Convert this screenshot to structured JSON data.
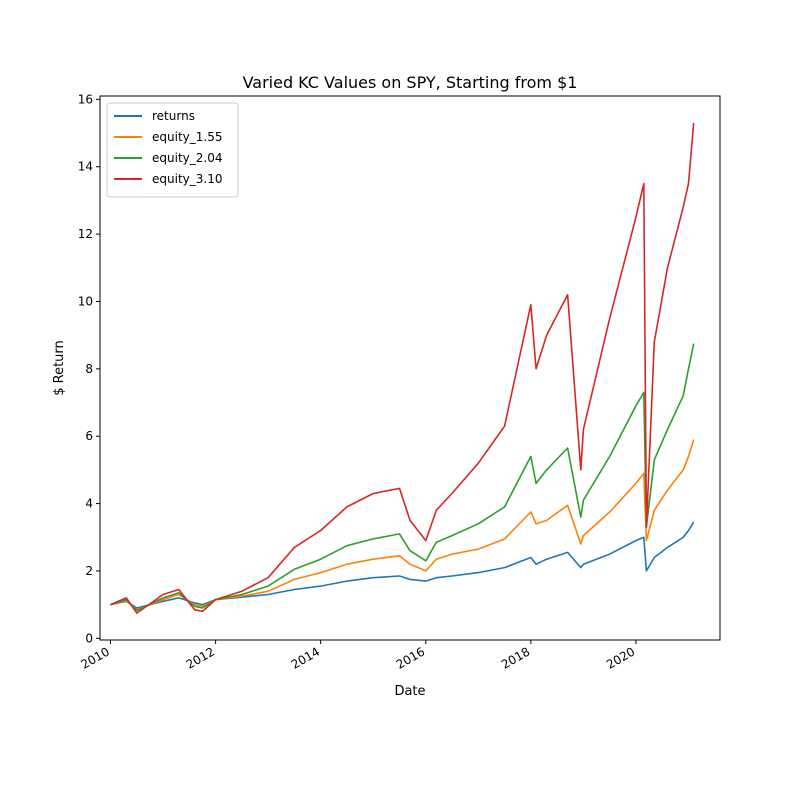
{
  "chart_data": {
    "type": "line",
    "title": "Varied KC Values on SPY, Starting from $1",
    "xlabel": "Date",
    "ylabel": "$ Return",
    "xlim": [
      2009.8,
      2021.6
    ],
    "ylim": [
      -0.05,
      16.1
    ],
    "x_ticks": [
      2010,
      2012,
      2014,
      2016,
      2018,
      2020
    ],
    "x_tick_labels": [
      "2010",
      "2012",
      "2014",
      "2016",
      "2018",
      "2020"
    ],
    "y_ticks": [
      0,
      2,
      4,
      6,
      8,
      10,
      12,
      14,
      16
    ],
    "y_tick_labels": [
      "0",
      "2",
      "4",
      "6",
      "8",
      "10",
      "12",
      "14",
      "16"
    ],
    "grid": false,
    "legend_position": "top-left",
    "x": [
      2010.0,
      2010.3,
      2010.5,
      2011.0,
      2011.3,
      2011.6,
      2011.75,
      2012.0,
      2012.5,
      2013.0,
      2013.5,
      2014.0,
      2014.5,
      2015.0,
      2015.5,
      2015.7,
      2016.0,
      2016.2,
      2016.5,
      2017.0,
      2017.5,
      2018.0,
      2018.1,
      2018.3,
      2018.7,
      2018.95,
      2019.0,
      2019.5,
      2020.0,
      2020.15,
      2020.2,
      2020.35,
      2020.6,
      2020.9,
      2021.0,
      2021.1
    ],
    "series": [
      {
        "name": "returns",
        "color": "#1f77b4",
        "values": [
          1.0,
          1.1,
          0.9,
          1.1,
          1.2,
          1.05,
          1.0,
          1.15,
          1.22,
          1.3,
          1.45,
          1.55,
          1.7,
          1.8,
          1.85,
          1.75,
          1.7,
          1.8,
          1.85,
          1.95,
          2.1,
          2.4,
          2.2,
          2.35,
          2.55,
          2.1,
          2.2,
          2.5,
          2.9,
          3.0,
          2.0,
          2.4,
          2.7,
          3.0,
          3.2,
          3.45
        ]
      },
      {
        "name": "equity_1.55",
        "color": "#ff7f0e",
        "values": [
          1.0,
          1.12,
          0.85,
          1.15,
          1.3,
          1.0,
          0.95,
          1.15,
          1.25,
          1.4,
          1.75,
          1.95,
          2.2,
          2.35,
          2.45,
          2.2,
          2.0,
          2.35,
          2.5,
          2.65,
          2.95,
          3.75,
          3.4,
          3.5,
          3.95,
          2.8,
          3.05,
          3.75,
          4.6,
          4.9,
          2.9,
          3.8,
          4.4,
          5.0,
          5.4,
          5.9
        ]
      },
      {
        "name": "equity_2.04",
        "color": "#2ca02c",
        "values": [
          1.0,
          1.15,
          0.82,
          1.2,
          1.35,
          0.95,
          0.9,
          1.15,
          1.3,
          1.55,
          2.05,
          2.35,
          2.75,
          2.95,
          3.1,
          2.6,
          2.3,
          2.85,
          3.05,
          3.4,
          3.9,
          5.4,
          4.6,
          5.0,
          5.65,
          3.6,
          4.1,
          5.4,
          6.9,
          7.3,
          3.3,
          5.3,
          6.2,
          7.2,
          8.0,
          8.75
        ]
      },
      {
        "name": "equity_3.10",
        "color": "#d62728",
        "values": [
          1.0,
          1.2,
          0.75,
          1.3,
          1.45,
          0.85,
          0.8,
          1.15,
          1.4,
          1.8,
          2.7,
          3.2,
          3.9,
          4.3,
          4.45,
          3.5,
          2.9,
          3.8,
          4.3,
          5.2,
          6.3,
          9.9,
          8.0,
          9.0,
          10.2,
          5.0,
          6.2,
          9.5,
          12.5,
          13.5,
          3.3,
          8.8,
          11.0,
          12.8,
          13.5,
          15.3
        ]
      }
    ]
  }
}
